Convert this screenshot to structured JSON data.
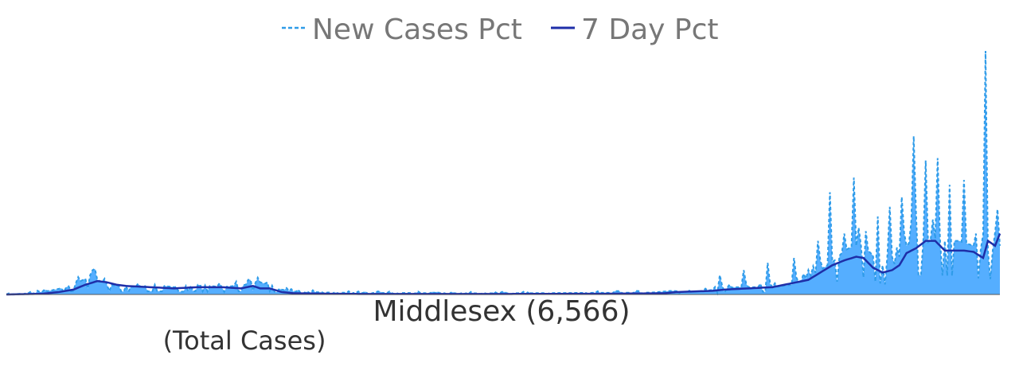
{
  "chart_data": {
    "type": "area",
    "title": "Middlesex (6,566)",
    "subtitle": "(Total Cases)",
    "x_points": 416,
    "ylim": [
      0,
      100
    ],
    "grid": false,
    "legend_position": "top-center",
    "series": [
      {
        "name": "New Cases Pct",
        "style": "dashed-with-area",
        "color": "#2E9BE8",
        "fill_color": "#55AEFF",
        "keypoints": [
          [
            0,
            0
          ],
          [
            10,
            0.5
          ],
          [
            18,
            1.5
          ],
          [
            25,
            3
          ],
          [
            30,
            5
          ],
          [
            34,
            7
          ],
          [
            36,
            9
          ],
          [
            38,
            6
          ],
          [
            42,
            4
          ],
          [
            55,
            3
          ],
          [
            62,
            4
          ],
          [
            70,
            3
          ],
          [
            80,
            4
          ],
          [
            90,
            3
          ],
          [
            100,
            4
          ],
          [
            106,
            5
          ],
          [
            110,
            4
          ],
          [
            115,
            2
          ],
          [
            120,
            1.2
          ],
          [
            135,
            0.8
          ],
          [
            150,
            0.6
          ],
          [
            170,
            0.6
          ],
          [
            190,
            0.5
          ],
          [
            210,
            0.5
          ],
          [
            230,
            0.6
          ],
          [
            250,
            0.7
          ],
          [
            270,
            0.8
          ],
          [
            278,
            1.5
          ],
          [
            285,
            1
          ],
          [
            292,
            1.5
          ],
          [
            300,
            2.5
          ],
          [
            305,
            3
          ],
          [
            312,
            3
          ],
          [
            320,
            3
          ],
          [
            328,
            4
          ],
          [
            333,
            6
          ],
          [
            340,
            10
          ],
          [
            346,
            14
          ],
          [
            350,
            18
          ],
          [
            354,
            20
          ],
          [
            358,
            20
          ],
          [
            362,
            16
          ],
          [
            366,
            12
          ],
          [
            370,
            11
          ],
          [
            376,
            20
          ],
          [
            380,
            24
          ],
          [
            384,
            21
          ],
          [
            388,
            23
          ],
          [
            392,
            22
          ],
          [
            398,
            22
          ],
          [
            404,
            20
          ],
          [
            408,
            18
          ],
          [
            412,
            18
          ],
          [
            415,
            20
          ]
        ],
        "spikes": [
          [
            36,
            10
          ],
          [
            102,
            6
          ],
          [
            109,
            5
          ],
          [
            298,
            8
          ],
          [
            308,
            10
          ],
          [
            318,
            13
          ],
          [
            329,
            15
          ],
          [
            339,
            22
          ],
          [
            344,
            42
          ],
          [
            350,
            25
          ],
          [
            354,
            48
          ],
          [
            359,
            26
          ],
          [
            364,
            32
          ],
          [
            369,
            36
          ],
          [
            374,
            40
          ],
          [
            379,
            65
          ],
          [
            384,
            55
          ],
          [
            389,
            56
          ],
          [
            394,
            45
          ],
          [
            400,
            47
          ],
          [
            405,
            25
          ],
          [
            409,
            100
          ],
          [
            414,
            35
          ]
        ]
      },
      {
        "name": "7 Day Pct",
        "style": "solid",
        "color": "#1E2EA8",
        "keypoints": [
          [
            0,
            0
          ],
          [
            15,
            0.3
          ],
          [
            22,
            1
          ],
          [
            28,
            2
          ],
          [
            33,
            4
          ],
          [
            38,
            5.5
          ],
          [
            42,
            5
          ],
          [
            46,
            4
          ],
          [
            50,
            3.5
          ],
          [
            60,
            3
          ],
          [
            70,
            2.5
          ],
          [
            80,
            3
          ],
          [
            90,
            3
          ],
          [
            98,
            2.5
          ],
          [
            103,
            3.5
          ],
          [
            106,
            2.5
          ],
          [
            110,
            2.5
          ],
          [
            115,
            1
          ],
          [
            120,
            0.5
          ],
          [
            135,
            0.3
          ],
          [
            150,
            0.2
          ],
          [
            200,
            0.2
          ],
          [
            250,
            0.3
          ],
          [
            275,
            0.5
          ],
          [
            280,
            1
          ],
          [
            295,
            1.5
          ],
          [
            300,
            2
          ],
          [
            310,
            2.5
          ],
          [
            320,
            3
          ],
          [
            325,
            4
          ],
          [
            330,
            5
          ],
          [
            335,
            6
          ],
          [
            340,
            9
          ],
          [
            345,
            12
          ],
          [
            350,
            14
          ],
          [
            355,
            15.5
          ],
          [
            358,
            15
          ],
          [
            362,
            11
          ],
          [
            366,
            9
          ],
          [
            370,
            10
          ],
          [
            373,
            12
          ],
          [
            376,
            17
          ],
          [
            380,
            19
          ],
          [
            384,
            22
          ],
          [
            388,
            22
          ],
          [
            392,
            18
          ],
          [
            396,
            18
          ],
          [
            400,
            18
          ],
          [
            404,
            17.5
          ],
          [
            408,
            15
          ],
          [
            410,
            22
          ],
          [
            413,
            20
          ],
          [
            415,
            25
          ]
        ]
      }
    ]
  }
}
